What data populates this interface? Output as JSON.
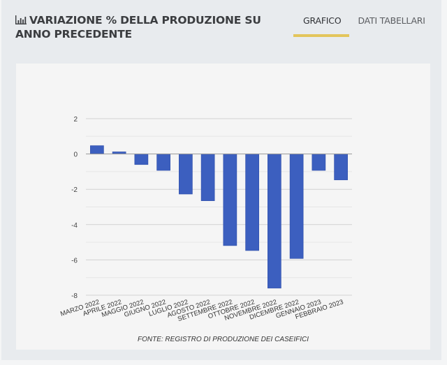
{
  "header": {
    "icon": "bar-chart-icon",
    "title": "VARIAZIONE % DELLA PRODUZIONE SU ANNO PRECEDENTE"
  },
  "tabs": [
    {
      "label": "GRAFICO",
      "active": true
    },
    {
      "label": "DATI TABELLARI",
      "active": false
    }
  ],
  "colors": {
    "bar": "#3c5fbf",
    "tab_indicator": "#e3c55b",
    "grid": "#d6d6d6",
    "zero_line": "#999999"
  },
  "chart_data": {
    "type": "bar",
    "title": "VARIAZIONE % DELLA PRODUZIONE SU ANNO PRECEDENTE",
    "xlabel": "",
    "ylabel": "",
    "categories": [
      "MARZO 2022",
      "APRILE 2022",
      "MAGGIO 2022",
      "GIUGNO 2022",
      "LUGLIO 2022",
      "AGOSTO 2022",
      "SETTEMBRE 2022",
      "OTTOBRE 2022",
      "NOVEMBRE 2022",
      "DICEMBRE 2022",
      "GENNAIO 2023",
      "FEBBRAIO 2023"
    ],
    "values": [
      0.47,
      0.12,
      -0.6,
      -0.93,
      -2.27,
      -2.65,
      -5.19,
      -5.47,
      -7.6,
      -5.92,
      -0.93,
      -1.47
    ],
    "ylim": [
      -8,
      2
    ],
    "yticks": [
      2,
      0,
      -2,
      -4,
      -6,
      -8
    ],
    "grid": true,
    "legend": "none",
    "source": "FONTE: REGISTRO DI PRODUZIONE DEI CASEIFICI"
  }
}
